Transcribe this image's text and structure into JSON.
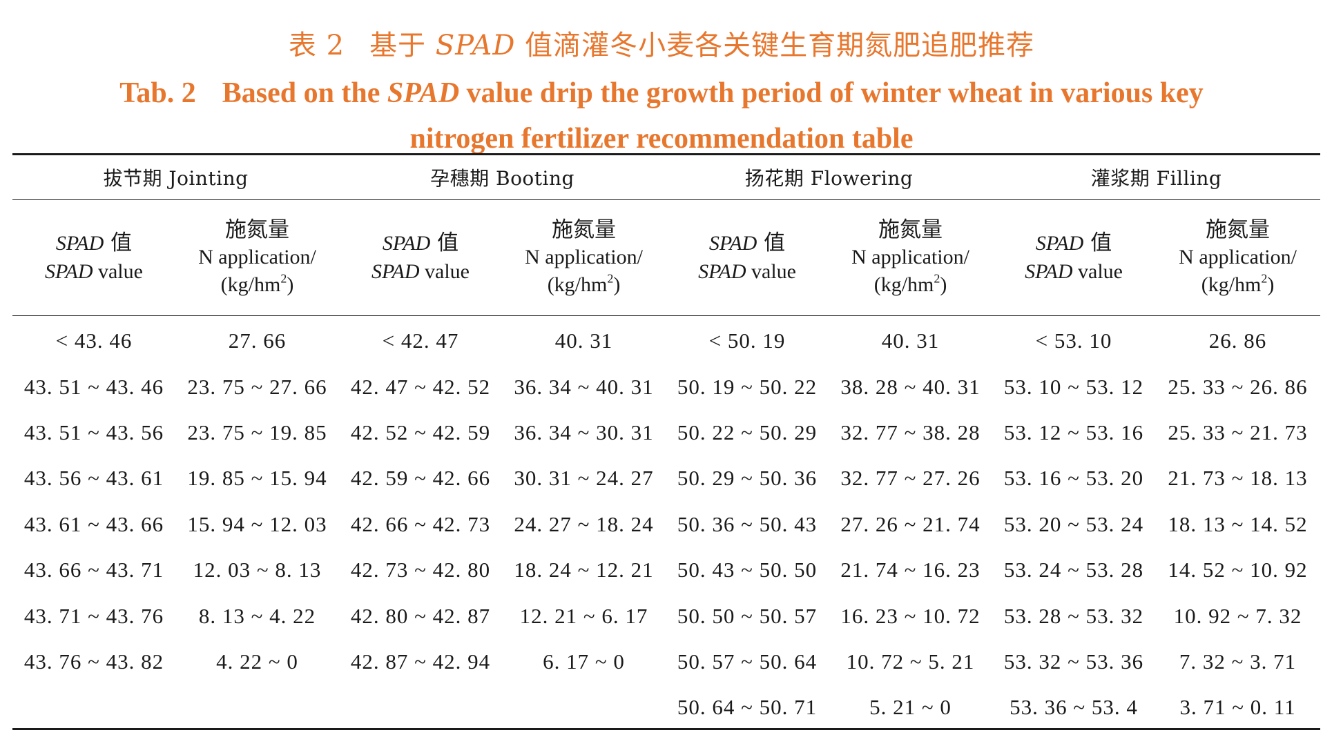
{
  "title": {
    "cn_label": "表 2",
    "cn_before": "基于 ",
    "cn_italic": "SPAD",
    "cn_after": " 值滴灌冬小麦各关键生育期氮肥追肥推荐",
    "en_label": "Tab. 2",
    "en_before": "Based on the ",
    "en_italic": "SPAD",
    "en_after": " value drip the growth period of winter wheat in various key nitrogen fertilizer recommendation table"
  },
  "stages": [
    {
      "label": "拔节期 Jointing"
    },
    {
      "label": "孕穗期 Booting"
    },
    {
      "label": "扬花期 Flowering"
    },
    {
      "label": "灌浆期 Filling"
    }
  ],
  "subheaders": {
    "spad_cn": "SPAD",
    "spad_cn_suffix": " 值",
    "spad_en": "SPAD",
    "spad_en_suffix": " value",
    "n_cn": "施氮量",
    "n_en": "N application/",
    "n_unit_open": "(kg/hm",
    "n_unit_sup": "2",
    "n_unit_close": ")"
  },
  "rows": [
    [
      "< 43. 46",
      "27. 66",
      "< 42. 47",
      "40. 31",
      "< 50. 19",
      "40. 31",
      "< 53. 10",
      "26. 86"
    ],
    [
      "43. 51 ~ 43. 46",
      "23. 75 ~ 27. 66",
      "42. 47 ~ 42. 52",
      "36. 34 ~ 40. 31",
      "50. 19 ~ 50. 22",
      "38. 28 ~ 40. 31",
      "53. 10 ~ 53. 12",
      "25. 33 ~ 26. 86"
    ],
    [
      "43. 51 ~ 43. 56",
      "23. 75 ~ 19. 85",
      "42. 52 ~ 42. 59",
      "36. 34 ~ 30. 31",
      "50. 22 ~ 50. 29",
      "32. 77 ~ 38. 28",
      "53. 12 ~ 53. 16",
      "25. 33 ~ 21. 73"
    ],
    [
      "43. 56 ~ 43. 61",
      "19. 85 ~ 15. 94",
      "42. 59 ~ 42. 66",
      "30. 31 ~ 24. 27",
      "50. 29 ~ 50. 36",
      "32. 77 ~ 27. 26",
      "53. 16 ~ 53. 20",
      "21. 73 ~ 18. 13"
    ],
    [
      "43. 61 ~ 43. 66",
      "15. 94 ~ 12. 03",
      "42. 66 ~ 42. 73",
      "24. 27 ~ 18. 24",
      "50. 36 ~ 50. 43",
      "27. 26 ~ 21. 74",
      "53. 20 ~ 53. 24",
      "18. 13 ~ 14. 52"
    ],
    [
      "43. 66 ~ 43. 71",
      "12. 03 ~ 8. 13",
      "42. 73 ~ 42. 80",
      "18. 24 ~ 12. 21",
      "50. 43 ~ 50. 50",
      "21. 74 ~ 16. 23",
      "53. 24 ~ 53. 28",
      "14. 52 ~ 10. 92"
    ],
    [
      "43. 71 ~ 43. 76",
      "8. 13 ~ 4. 22",
      "42. 80 ~ 42. 87",
      "12. 21 ~ 6. 17",
      "50. 50 ~ 50. 57",
      "16. 23 ~ 10. 72",
      "53. 28 ~ 53. 32",
      "10. 92 ~ 7. 32"
    ],
    [
      "43. 76 ~ 43. 82",
      "4. 22 ~ 0",
      "42. 87 ~ 42. 94",
      "6. 17 ~ 0",
      "50. 57 ~ 50. 64",
      "10. 72 ~ 5. 21",
      "53. 32 ~ 53. 36",
      "7. 32 ~ 3. 71"
    ],
    [
      "",
      "",
      "",
      "",
      "50. 64 ~ 50. 71",
      "5. 21 ~ 0",
      "53. 36 ~ 53. 4",
      "3. 71 ~ 0. 11"
    ]
  ]
}
